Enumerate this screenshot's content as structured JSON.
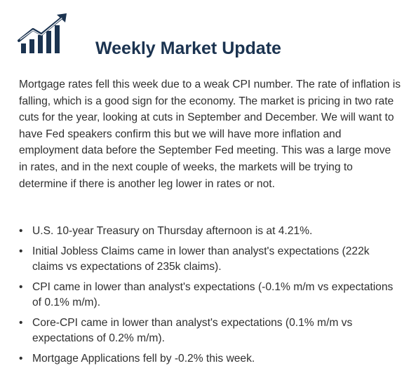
{
  "header": {
    "title": "Weekly Market Update",
    "logo_icon": "rising-bar-chart-icon",
    "accent_color": "#1b3350"
  },
  "intro": {
    "text": "Mortgage rates fell this week due to a weak CPI number. The rate of inflation is falling, which is a good sign for the economy. The market is pricing in two rate cuts for the year, looking at cuts in September and December. We will want to have Fed speakers confirm this but we will have more inflation and employment data before the September Fed meeting. This was a large move in rates, and in the next couple of weeks, the markets will be trying to determine if there is another leg lower in rates or not."
  },
  "bullets": {
    "marker": "•",
    "items": [
      "U.S. 10-year Treasury on Thursday afternoon is at 4.21%.",
      "Initial Jobless Claims came in lower than analyst's expectations (222k claims vs expectations of 235k claims).",
      "CPI came in lower than analyst's expectations (-0.1% m/m vs expectations of 0.1% m/m).",
      "Core-CPI came in lower than analyst's expectations (0.1% m/m vs expectations of 0.2% m/m).",
      "Mortgage Applications fell by -0.2% this week."
    ]
  }
}
